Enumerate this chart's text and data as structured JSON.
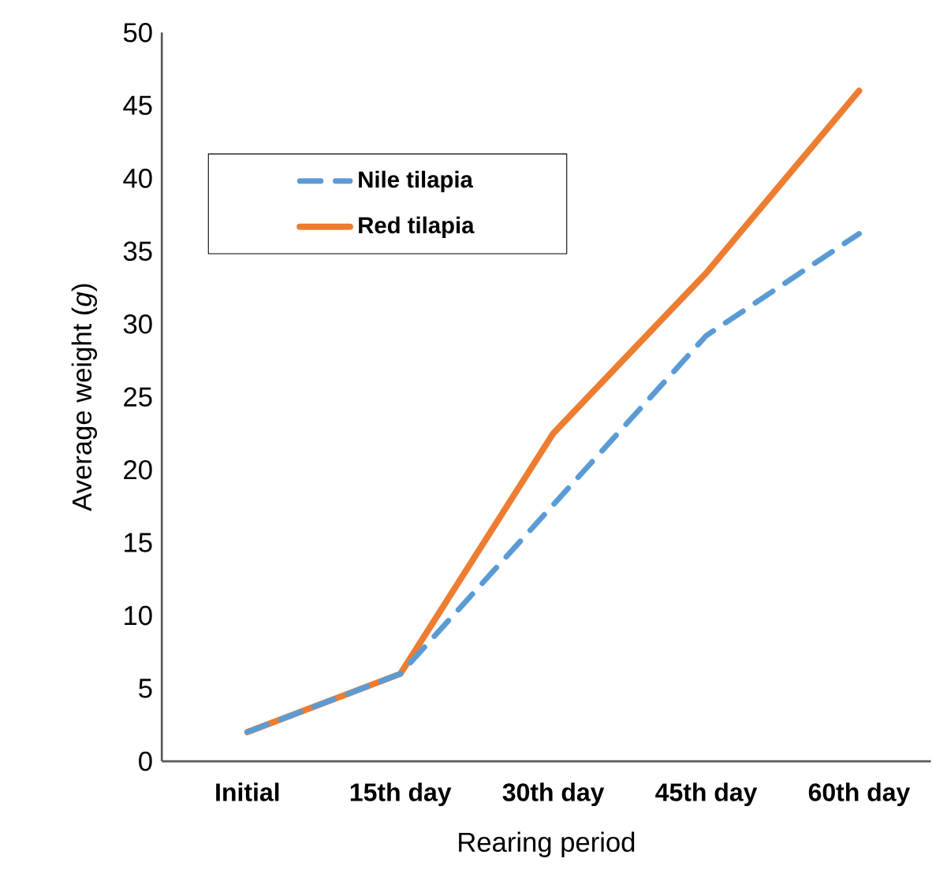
{
  "chart_data": {
    "type": "line",
    "xlabel": "Rearing period",
    "ylabel": "Average weight (*g*)",
    "categories": [
      "Initial",
      "15th day",
      "30th day",
      "45th day",
      "60th day"
    ],
    "series": [
      {
        "name": "Nile tilapia",
        "color": "#5b9bd5",
        "line_style": "dashed",
        "values": [
          2,
          6,
          17.6,
          29.2,
          36.2
        ]
      },
      {
        "name": "Red tilapia",
        "color": "#ed7d31",
        "line_style": "solid",
        "values": [
          2,
          6,
          22.5,
          33.5,
          46
        ]
      }
    ],
    "ylim": [
      0,
      50
    ],
    "yticks": [
      0,
      5,
      10,
      15,
      20,
      25,
      30,
      35,
      40,
      45,
      50
    ],
    "legend": "top left",
    "grid": false,
    "marker": "none"
  }
}
